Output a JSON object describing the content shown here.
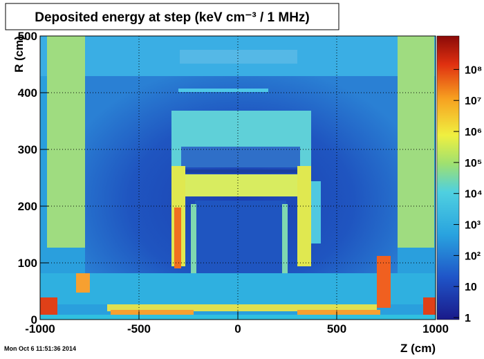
{
  "chart_data": {
    "type": "heatmap",
    "title": "Deposited energy at step (keV cm⁻³ / 1 MHz)",
    "x_label": "Z (cm)",
    "y_label": "R (cm)",
    "timestamp": "Mon Oct  6 11:51:36 2014",
    "xlim": [
      -1000,
      1000
    ],
    "xticks": [
      -1000,
      -500,
      0,
      500,
      1000
    ],
    "ylim": [
      0,
      500
    ],
    "yticks": [
      0,
      100,
      200,
      300,
      400,
      500
    ],
    "zlim": [
      0.86,
      1200000000
    ],
    "zlog": true,
    "zticks": [
      1,
      10,
      {
        "value": 100,
        "label": "10²"
      },
      {
        "value": 1000,
        "label": "10³"
      },
      {
        "value": 10000,
        "label": "10⁴"
      },
      {
        "value": 100000,
        "label": "10⁵"
      },
      {
        "value": 1000000,
        "label": "10⁶"
      },
      {
        "value": 10000000,
        "label": "10⁷"
      },
      {
        "value": 100000000,
        "label": "10⁸"
      }
    ],
    "grid": true
  }
}
